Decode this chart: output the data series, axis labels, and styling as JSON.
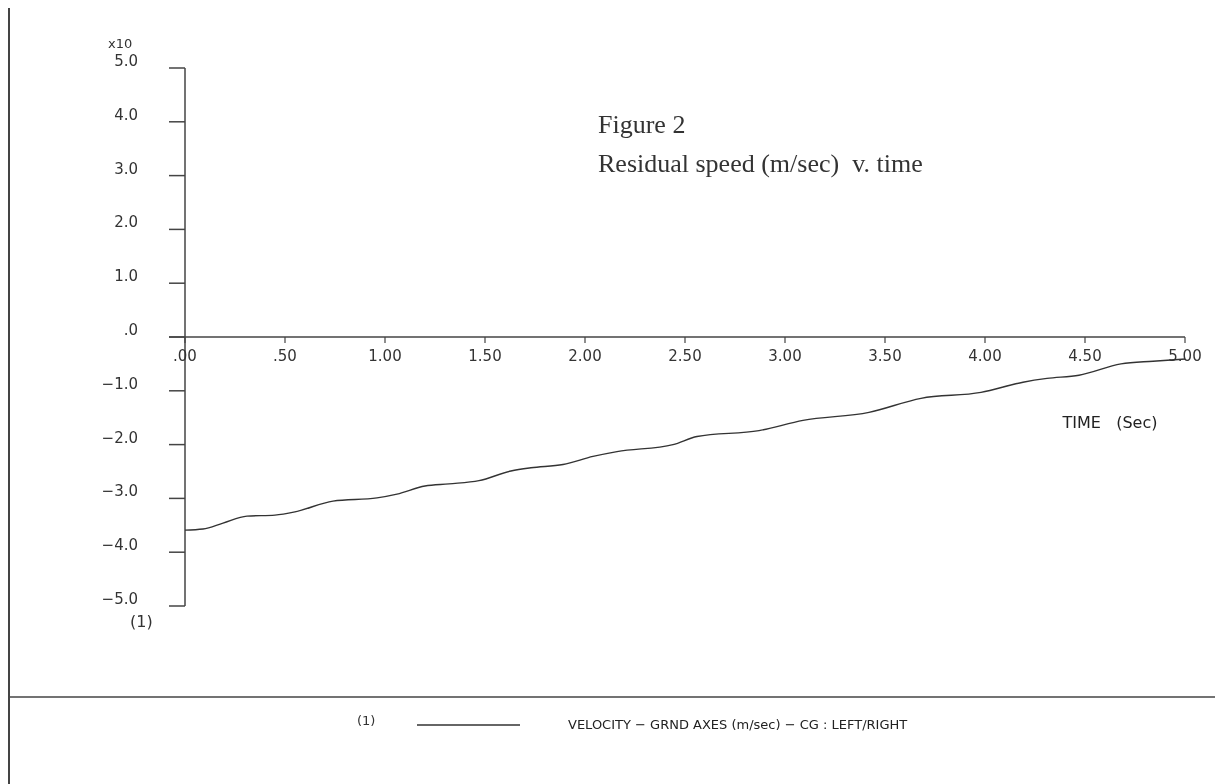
{
  "chart_data": {
    "type": "line",
    "title": "Figure 2",
    "subtitle": "Residual speed (m/sec)  v. time",
    "xlabel": "TIME   (Sec)",
    "annotations": [
      "x10",
      "(1)",
      "(1)"
    ],
    "xlim": [
      0,
      5
    ],
    "xticks": [
      {
        "value": 0,
        "label": ".00"
      },
      {
        "value": 0.5,
        "label": ".50"
      },
      {
        "value": 1,
        "label": "1.00"
      },
      {
        "value": 1.5,
        "label": "1.50"
      },
      {
        "value": 2,
        "label": "2.00"
      },
      {
        "value": 2.5,
        "label": "2.50"
      },
      {
        "value": 3,
        "label": "3.00"
      },
      {
        "value": 3.5,
        "label": "3.50"
      },
      {
        "value": 4,
        "label": "4.00"
      },
      {
        "value": 4.5,
        "label": "4.50"
      },
      {
        "value": 5,
        "label": "5.00"
      }
    ],
    "ylim": [
      -5,
      5
    ],
    "yticks": [
      {
        "value": 5,
        "label": "5.0"
      },
      {
        "value": 4,
        "label": "4.0"
      },
      {
        "value": 3,
        "label": "3.0"
      },
      {
        "value": 2,
        "label": "2.0"
      },
      {
        "value": 1,
        "label": "1.0"
      },
      {
        "value": 0,
        "label": ".0"
      },
      {
        "value": -1,
        "label": "−1.0"
      },
      {
        "value": -2,
        "label": "−2.0"
      },
      {
        "value": -3,
        "label": "−3.0"
      },
      {
        "value": -4,
        "label": "−4.0"
      },
      {
        "value": -5,
        "label": "−5.0"
      }
    ],
    "legend": "bottom",
    "series": [
      {
        "name": "VELOCITY − GRND AXES (m/sec) − CG : LEFT/RIGHT",
        "color": "#333333",
        "x": [
          0,
          0.09,
          0.19,
          0.31,
          0.45,
          0.55,
          0.74,
          0.96,
          1.06,
          1.2,
          1.32,
          1.47,
          1.63,
          1.73,
          1.89,
          2.04,
          2.16,
          2.44,
          2.56,
          2.87,
          3.09,
          3.42,
          3.68,
          3.98,
          4.19,
          4.31,
          4.47,
          4.68,
          4.84,
          5.0
        ],
        "values": [
          -3.59,
          -3.57,
          -3.46,
          -3.33,
          -3.31,
          -3.25,
          -3.05,
          -2.99,
          -2.92,
          -2.77,
          -2.73,
          -2.67,
          -2.49,
          -2.43,
          -2.37,
          -2.22,
          -2.13,
          -2.0,
          -1.85,
          -1.74,
          -1.55,
          -1.4,
          -1.14,
          -1.03,
          -0.84,
          -0.77,
          -0.71,
          -0.5,
          -0.45,
          -0.41
        ]
      }
    ]
  }
}
